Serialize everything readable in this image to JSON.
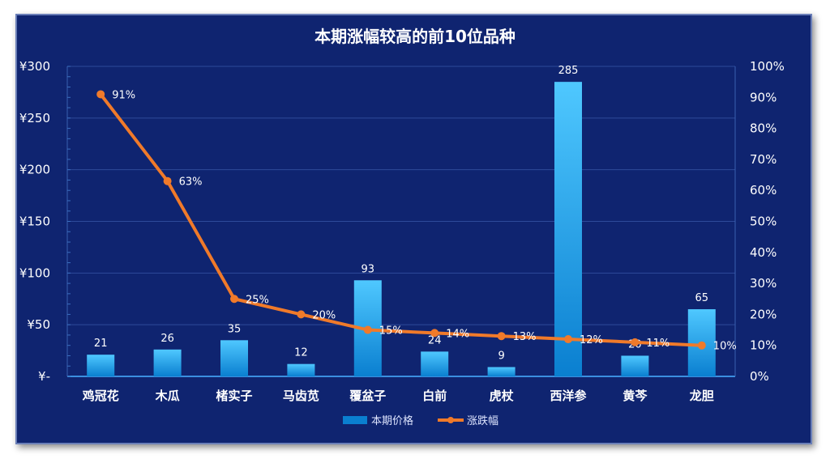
{
  "colors": {
    "background": "#0f2470",
    "bar_top": "#4fc8ff",
    "bar_bottom": "#0a7fd0",
    "line": "#f07a2a",
    "grid": "#2e4a9a",
    "text": "#ffffff"
  },
  "chart_data": {
    "type": "bar",
    "title": "本期涨幅较高的前10位品种",
    "categories": [
      "鸡冠花",
      "木瓜",
      "楮实子",
      "马齿苋",
      "覆盆子",
      "白前",
      "虎杖",
      "西洋参",
      "黄芩",
      "龙胆"
    ],
    "series": [
      {
        "name": "本期价格",
        "type": "bar",
        "axis": "left",
        "values": [
          21,
          26,
          35,
          12,
          93,
          24,
          9,
          285,
          20,
          65
        ],
        "labels": [
          "21",
          "26",
          "35",
          "12",
          "93",
          "24",
          "9",
          "285",
          "20",
          "65"
        ]
      },
      {
        "name": "涨跌幅",
        "type": "line",
        "axis": "right",
        "values": [
          0.91,
          0.63,
          0.25,
          0.2,
          0.15,
          0.14,
          0.13,
          0.12,
          0.11,
          0.1
        ],
        "labels": [
          "91%",
          "63%",
          "25%",
          "20%",
          "15%",
          "14%",
          "13%",
          "12%",
          "11%",
          "10%"
        ]
      }
    ],
    "y_left": {
      "ylim": [
        0,
        300
      ],
      "ticks": [
        0,
        50,
        100,
        150,
        200,
        250,
        300
      ],
      "tick_labels": [
        "¥-",
        "¥50",
        "¥100",
        "¥150",
        "¥200",
        "¥250",
        "¥300"
      ]
    },
    "y_right": {
      "ylim": [
        0,
        1
      ],
      "ticks": [
        0,
        0.1,
        0.2,
        0.3,
        0.4,
        0.5,
        0.6,
        0.7,
        0.8,
        0.9,
        1.0
      ],
      "tick_labels": [
        "0%",
        "10%",
        "20%",
        "30%",
        "40%",
        "50%",
        "60%",
        "70%",
        "80%",
        "90%",
        "100%"
      ]
    },
    "grid": true,
    "legend": "bottom"
  }
}
